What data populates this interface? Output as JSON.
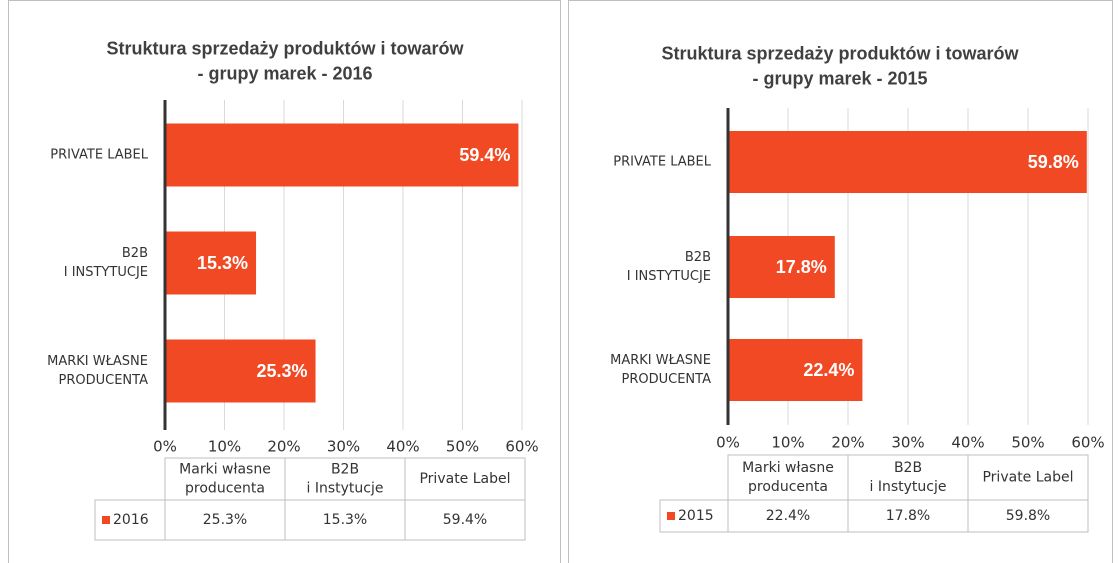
{
  "chart_data": [
    {
      "type": "bar",
      "orientation": "horizontal",
      "title": [
        "Struktura sprzedaży produktów i towarów",
        "- grupy marek - 2016"
      ],
      "categories": [
        [
          "MARKI WŁASNE",
          "PRODUCENTA"
        ],
        [
          "B2B",
          "I INSTYTUCJE"
        ],
        [
          "PRIVATE LABEL"
        ]
      ],
      "series": [
        {
          "name": "2016",
          "color": "#f04923",
          "values": [
            25.3,
            15.3,
            59.4
          ],
          "value_labels": [
            "25.3%",
            "15.3%",
            "59.4%"
          ]
        }
      ],
      "xlim": [
        0,
        60
      ],
      "xticks": [
        {
          "value": 0,
          "label": "0%"
        },
        {
          "value": 10,
          "label": "10%"
        },
        {
          "value": 20,
          "label": "20%"
        },
        {
          "value": 30,
          "label": "30%"
        },
        {
          "value": 40,
          "label": "40%"
        },
        {
          "value": 50,
          "label": "50%"
        },
        {
          "value": 60,
          "label": "60%"
        }
      ],
      "grid": true,
      "data_table": {
        "columns": [
          [
            "Marki własne",
            "producenta"
          ],
          [
            "B2B",
            "i Instytucje"
          ],
          [
            "Private Label"
          ]
        ]
      }
    },
    {
      "type": "bar",
      "orientation": "horizontal",
      "title": [
        "Struktura sprzedaży produktów i towarów",
        "- grupy marek - 2015"
      ],
      "categories": [
        [
          "MARKI WŁASNE",
          "PRODUCENTA"
        ],
        [
          "B2B",
          "I INSTYTUCJE"
        ],
        [
          "PRIVATE LABEL"
        ]
      ],
      "series": [
        {
          "name": "2015",
          "color": "#f04923",
          "values": [
            22.4,
            17.8,
            59.8
          ],
          "value_labels": [
            "22.4%",
            "17.8%",
            "59.8%"
          ]
        }
      ],
      "xlim": [
        0,
        60
      ],
      "xticks": [
        {
          "value": 0,
          "label": "0%"
        },
        {
          "value": 10,
          "label": "10%"
        },
        {
          "value": 20,
          "label": "20%"
        },
        {
          "value": 30,
          "label": "30%"
        },
        {
          "value": 40,
          "label": "40%"
        },
        {
          "value": 50,
          "label": "50%"
        },
        {
          "value": 60,
          "label": "60%"
        }
      ],
      "grid": true,
      "data_table": {
        "columns": [
          [
            "Marki własne",
            "producenta"
          ],
          [
            "B2B",
            "i Instytucje"
          ],
          [
            "Private Label"
          ]
        ]
      }
    }
  ]
}
